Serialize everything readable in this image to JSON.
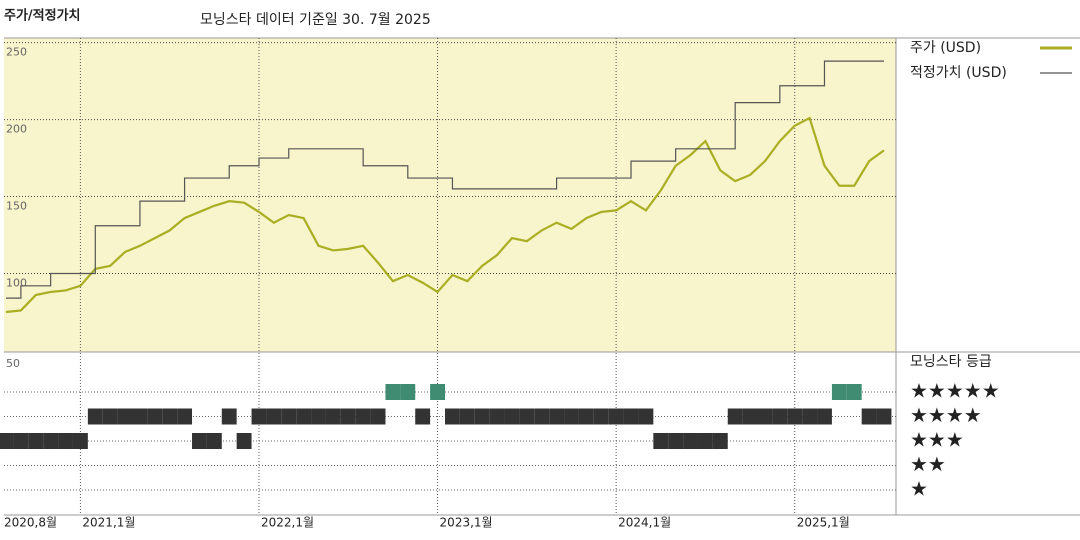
{
  "chart_data": {
    "type": "line",
    "title": "주가/적정가치",
    "subtitle": "모닝스타 데이터 기준일 30. 7월 2025",
    "x": [
      "2020-08",
      "2020-09",
      "2020-10",
      "2020-11",
      "2020-12",
      "2021-01",
      "2021-02",
      "2021-03",
      "2021-04",
      "2021-05",
      "2021-06",
      "2021-07",
      "2021-08",
      "2021-09",
      "2021-10",
      "2021-11",
      "2021-12",
      "2022-01",
      "2022-02",
      "2022-03",
      "2022-04",
      "2022-05",
      "2022-06",
      "2022-07",
      "2022-08",
      "2022-09",
      "2022-10",
      "2022-11",
      "2022-12",
      "2023-01",
      "2023-02",
      "2023-03",
      "2023-04",
      "2023-05",
      "2023-06",
      "2023-07",
      "2023-08",
      "2023-09",
      "2023-10",
      "2023-11",
      "2023-12",
      "2024-01",
      "2024-02",
      "2024-03",
      "2024-04",
      "2024-05",
      "2024-06",
      "2024-07",
      "2024-08",
      "2024-09",
      "2024-10",
      "2024-11",
      "2024-12",
      "2025-01",
      "2025-02",
      "2025-03",
      "2025-04",
      "2025-05",
      "2025-06",
      "2025-07"
    ],
    "series": [
      {
        "name": "주가 (USD)",
        "color": "#a9ae22",
        "values": [
          75,
          76,
          86,
          88,
          89,
          92,
          103,
          105,
          114,
          118,
          123,
          128,
          136,
          140,
          144,
          147,
          146,
          140,
          133,
          138,
          136,
          118,
          115,
          116,
          118,
          107,
          95,
          99,
          94,
          88,
          99,
          95,
          105,
          112,
          123,
          121,
          128,
          133,
          129,
          136,
          140,
          141,
          147,
          141,
          154,
          170,
          177,
          186,
          167,
          160,
          164,
          173,
          186,
          196,
          201,
          170,
          157,
          157,
          173,
          180
        ]
      },
      {
        "name": "적정가치 (USD)",
        "color": "#555555",
        "step": true,
        "values": [
          84,
          92,
          92,
          100,
          100,
          100,
          131,
          131,
          131,
          147,
          147,
          147,
          162,
          162,
          162,
          170,
          170,
          175,
          175,
          181,
          181,
          181,
          181,
          181,
          170,
          170,
          170,
          162,
          162,
          162,
          155,
          155,
          155,
          155,
          155,
          155,
          155,
          162,
          162,
          162,
          162,
          162,
          173,
          173,
          173,
          181,
          181,
          181,
          181,
          211,
          211,
          211,
          222,
          222,
          222,
          238,
          238,
          238,
          238,
          238
        ]
      }
    ],
    "xlim": [
      "2020-08",
      "2025-07"
    ],
    "xticks": [
      {
        "value": "2020-08",
        "label": "2020,8월"
      },
      {
        "value": "2021-01",
        "label": "2021,1월"
      },
      {
        "value": "2022-01",
        "label": "2022,1월"
      },
      {
        "value": "2023-01",
        "label": "2023,1월"
      },
      {
        "value": "2024-01",
        "label": "2024,1월"
      },
      {
        "value": "2025-01",
        "label": "2025,1월"
      }
    ],
    "ylim": [
      49,
      253
    ],
    "yticks": [
      100,
      150,
      200,
      250
    ],
    "grid": true,
    "background": "#f8f4cb",
    "rating_title": "모닝스타 등급",
    "rating_axis_label": "50",
    "rating_levels": [
      "★★★★★",
      "★★★★",
      "★★★",
      "★★",
      "★"
    ],
    "rating_colors": {
      "5": "#3f8c72",
      "other": "#333333"
    },
    "ratings": [
      3,
      3,
      3,
      3,
      3,
      3,
      4,
      4,
      4,
      4,
      4,
      4,
      4,
      3,
      3,
      4,
      3,
      4,
      4,
      4,
      4,
      4,
      4,
      4,
      4,
      4,
      5,
      5,
      4,
      5,
      4,
      4,
      4,
      4,
      4,
      4,
      4,
      4,
      4,
      4,
      4,
      4,
      4,
      4,
      3,
      3,
      3,
      3,
      3,
      4,
      4,
      4,
      4,
      4,
      4,
      4,
      5,
      5,
      4,
      4
    ]
  }
}
